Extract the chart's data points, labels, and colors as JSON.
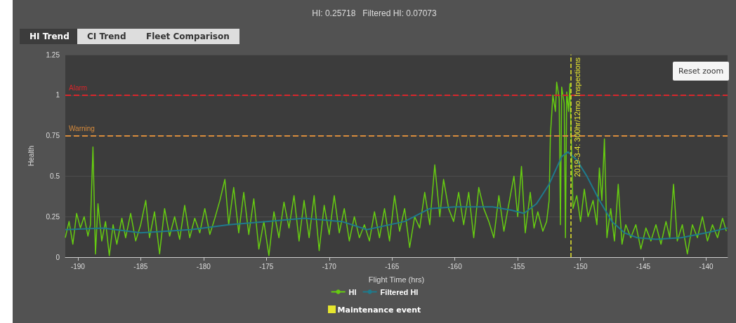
{
  "chart_data": {
    "type": "line",
    "title": "HI: 0.25718   Filtered HI: 0.07073",
    "xlabel": "Flight Time (hrs)",
    "ylabel": "Health",
    "annotations": [
      "HI Trend",
      "CI Trend",
      "Fleet Comparison",
      "Reset zoom",
      "Maintenance event",
      "2019-3-4: 300hr/12mo. Inspections"
    ],
    "xlim": [
      -191,
      -138.3
    ],
    "xticks": [
      -190,
      -185,
      -180,
      -175,
      -170,
      -165,
      -160,
      -155,
      -150,
      -145,
      -140
    ],
    "ylim": [
      0,
      1.25
    ],
    "yticks": [
      0,
      0.25,
      0.5,
      0.75,
      1,
      1.25
    ],
    "grid": "y",
    "legend": "bottom",
    "marker": "none",
    "line_style": "solid",
    "ref_lines": [
      {
        "axis": "y",
        "value": 1,
        "label": "Alarm",
        "color": "#d9262b",
        "line_style": "dashed"
      },
      {
        "axis": "y",
        "value": 0.75,
        "label": "Warning",
        "color": "#d98c3c",
        "line_style": "dashed"
      },
      {
        "axis": "x",
        "value": -150.8,
        "color": "#e6e62e",
        "line_style": "dashed"
      }
    ],
    "series": [
      {
        "name": "HI",
        "color": "#66cc11",
        "x": [
          -191.0,
          -190.7,
          -190.4,
          -190.1,
          -189.8,
          -189.5,
          -189.2,
          -189.0,
          -188.8,
          -188.6,
          -188.4,
          -188.1,
          -187.8,
          -187.5,
          -187.2,
          -186.9,
          -186.5,
          -186.2,
          -185.8,
          -185.4,
          -185.0,
          -184.6,
          -184.3,
          -183.9,
          -183.5,
          -183.1,
          -182.7,
          -182.3,
          -181.9,
          -181.5,
          -181.1,
          -180.7,
          -180.3,
          -179.9,
          -179.5,
          -179.1,
          -178.7,
          -178.3,
          -178.0,
          -177.6,
          -177.2,
          -176.8,
          -176.4,
          -176.0,
          -175.6,
          -175.2,
          -174.8,
          -174.4,
          -174.0,
          -173.6,
          -173.2,
          -172.8,
          -172.4,
          -172.0,
          -171.6,
          -171.2,
          -170.8,
          -170.4,
          -170.0,
          -169.6,
          -169.2,
          -168.8,
          -168.4,
          -168.0,
          -167.6,
          -167.2,
          -166.8,
          -166.4,
          -166.0,
          -165.6,
          -165.2,
          -164.8,
          -164.4,
          -164.0,
          -163.6,
          -163.2,
          -162.8,
          -162.4,
          -162.0,
          -161.6,
          -161.2,
          -160.9,
          -160.5,
          -160.1,
          -159.7,
          -159.3,
          -158.9,
          -158.5,
          -158.1,
          -157.7,
          -157.3,
          -156.9,
          -156.5,
          -156.1,
          -155.7,
          -155.3,
          -155.0,
          -154.7,
          -154.4,
          -154.0,
          -153.7,
          -153.4,
          -153.0,
          -152.7,
          -152.5,
          -152.4,
          -152.2,
          -152.0,
          -151.9,
          -151.7,
          -151.6,
          -151.5,
          -151.3,
          -151.2,
          -151.1,
          -150.95,
          -150.85,
          -150.6,
          -150.3,
          -150.0,
          -149.7,
          -149.4,
          -149.0,
          -148.7,
          -148.5,
          -148.3,
          -148.1,
          -147.9,
          -147.6,
          -147.3,
          -147.0,
          -146.7,
          -146.4,
          -146.0,
          -145.6,
          -145.2,
          -144.8,
          -144.4,
          -144.0,
          -143.6,
          -143.2,
          -142.9,
          -142.6,
          -142.3,
          -141.9,
          -141.5,
          -141.1,
          -140.7,
          -140.3,
          -139.9,
          -139.5,
          -139.1,
          -138.7,
          -138.4
        ],
        "values": [
          0.12,
          0.22,
          0.08,
          0.27,
          0.18,
          0.25,
          0.13,
          0.2,
          0.68,
          0.02,
          0.33,
          0.1,
          0.22,
          0.01,
          0.2,
          0.08,
          0.24,
          0.12,
          0.27,
          0.1,
          0.2,
          0.35,
          0.12,
          0.28,
          0.02,
          0.3,
          0.13,
          0.25,
          0.11,
          0.32,
          0.12,
          0.24,
          0.15,
          0.3,
          0.14,
          0.24,
          0.35,
          0.48,
          0.2,
          0.43,
          0.15,
          0.4,
          0.14,
          0.36,
          0.05,
          0.22,
          0.01,
          0.28,
          0.12,
          0.34,
          0.18,
          0.38,
          0.1,
          0.35,
          0.12,
          0.38,
          0.04,
          0.32,
          0.14,
          0.38,
          0.15,
          0.3,
          0.1,
          0.25,
          0.12,
          0.2,
          0.1,
          0.28,
          0.12,
          0.3,
          0.1,
          0.38,
          0.16,
          0.3,
          0.06,
          0.25,
          0.18,
          0.4,
          0.2,
          0.57,
          0.25,
          0.48,
          0.3,
          0.22,
          0.4,
          0.2,
          0.4,
          0.12,
          0.43,
          0.3,
          0.22,
          0.12,
          0.38,
          0.16,
          0.33,
          0.5,
          0.25,
          0.56,
          0.15,
          0.4,
          0.18,
          0.28,
          0.16,
          0.22,
          0.35,
          0.75,
          1.0,
          0.9,
          1.08,
          0.98,
          0.2,
          1.05,
          0.95,
          0.12,
          1.02,
          0.9,
          1.07,
          0.3,
          0.38,
          0.22,
          0.42,
          0.25,
          0.35,
          0.2,
          0.55,
          0.35,
          0.73,
          0.12,
          0.3,
          0.1,
          0.45,
          0.08,
          0.2,
          0.12,
          0.2,
          0.05,
          0.18,
          0.1,
          0.2,
          0.08,
          0.22,
          0.12,
          0.45,
          0.1,
          0.2,
          0.02,
          0.2,
          0.12,
          0.25,
          0.1,
          0.2,
          0.12,
          0.24,
          0.16
        ]
      },
      {
        "name": "Filtered HI",
        "color": "#1f7a8c",
        "x": [
          -191,
          -188,
          -185,
          -181,
          -178,
          -175,
          -172,
          -169,
          -167,
          -164,
          -162,
          -160,
          -157,
          -155.5,
          -154.5,
          -153.5,
          -152.5,
          -151.5,
          -151,
          -150.3,
          -149.5,
          -148.5,
          -147.5,
          -146.5,
          -145.5,
          -144,
          -142,
          -140,
          -138.3
        ],
        "values": [
          0.17,
          0.18,
          0.15,
          0.17,
          0.2,
          0.22,
          0.24,
          0.22,
          0.17,
          0.22,
          0.3,
          0.31,
          0.31,
          0.29,
          0.27,
          0.33,
          0.45,
          0.62,
          0.65,
          0.6,
          0.5,
          0.35,
          0.22,
          0.15,
          0.12,
          0.11,
          0.12,
          0.15,
          0.18
        ]
      }
    ]
  }
}
